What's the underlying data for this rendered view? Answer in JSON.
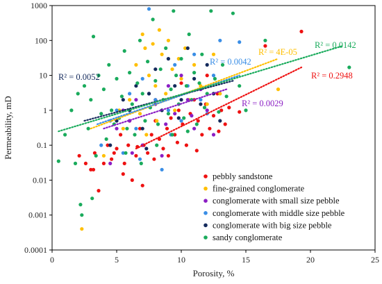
{
  "chart_data": {
    "type": "scatter",
    "title": "",
    "xlabel": "Porosity, %",
    "ylabel": "Permeability, mD",
    "xlim": [
      0,
      25
    ],
    "ylim": [
      0.0001,
      1000
    ],
    "y_scale": "log",
    "x_ticks": [
      "0",
      "5",
      "10",
      "15",
      "20",
      "25"
    ],
    "y_ticks": [
      "0.0001",
      "0.001",
      "0.01",
      "0.1",
      "1",
      "10",
      "100",
      "1000"
    ],
    "grid": false,
    "legend_position": "bottom-right",
    "series": [
      {
        "name": "pebbly sandstone",
        "color": "#ee1111",
        "points": [
          [
            2.1,
            0.05
          ],
          [
            2.6,
            0.03
          ],
          [
            3.0,
            0.02
          ],
          [
            3.3,
            0.06
          ],
          [
            3.6,
            0.005
          ],
          [
            4.0,
            0.03
          ],
          [
            4.3,
            0.1
          ],
          [
            4.6,
            0.04
          ],
          [
            5.0,
            0.08
          ],
          [
            5.3,
            0.2
          ],
          [
            5.6,
            0.03
          ],
          [
            5.9,
            0.1
          ],
          [
            6.2,
            0.01
          ],
          [
            6.5,
            0.05
          ],
          [
            6.8,
            0.3
          ],
          [
            7.1,
            0.1
          ],
          [
            7.4,
            0.06
          ],
          [
            7.7,
            0.2
          ],
          [
            8.0,
            0.5
          ],
          [
            8.3,
            0.15
          ],
          [
            8.6,
            0.08
          ],
          [
            8.9,
            0.3
          ],
          [
            9.2,
            0.6
          ],
          [
            9.5,
            0.2
          ],
          [
            9.8,
            1.0
          ],
          [
            10.1,
            0.4
          ],
          [
            10.4,
            0.1
          ],
          [
            10.7,
            0.8
          ],
          [
            11.0,
            2.0
          ],
          [
            11.3,
            0.5
          ],
          [
            11.6,
            0.2
          ],
          [
            11.9,
            1.5
          ],
          [
            12.2,
            0.3
          ],
          [
            12.5,
            0.7
          ],
          [
            12.8,
            3.0
          ],
          [
            13.1,
            1.0
          ],
          [
            13.4,
            0.4
          ],
          [
            13.7,
            1.2
          ],
          [
            7.0,
            0.007
          ],
          [
            5.5,
            0.015
          ],
          [
            9.0,
            0.05
          ],
          [
            6.0,
            0.5
          ],
          [
            8.0,
            2.0
          ],
          [
            10.0,
            6.0
          ],
          [
            12.0,
            10.0
          ],
          [
            16.5,
            70
          ],
          [
            19.3,
            180
          ],
          [
            14.5,
            0.9
          ],
          [
            4.8,
            0.06
          ],
          [
            3.2,
            0.02
          ],
          [
            6.6,
            0.09
          ],
          [
            7.9,
            0.04
          ],
          [
            9.7,
            0.12
          ],
          [
            11.2,
            0.07
          ],
          [
            12.9,
            0.25
          ]
        ]
      },
      {
        "name": "fine-grained conglomerate",
        "color": "#ffbf00",
        "points": [
          [
            2.3,
            0.0004
          ],
          [
            4.0,
            0.05
          ],
          [
            5.5,
            0.3
          ],
          [
            6.0,
            2.0
          ],
          [
            6.5,
            20
          ],
          [
            7.0,
            150
          ],
          [
            7.2,
            60
          ],
          [
            7.5,
            10
          ],
          [
            7.8,
            80
          ],
          [
            8.0,
            5
          ],
          [
            8.3,
            200
          ],
          [
            8.5,
            40
          ],
          [
            8.8,
            3
          ],
          [
            9.0,
            100
          ],
          [
            9.3,
            15
          ],
          [
            9.5,
            1
          ],
          [
            9.8,
            30
          ],
          [
            10.0,
            8
          ],
          [
            10.3,
            60
          ],
          [
            10.6,
            2
          ],
          [
            11.0,
            20
          ],
          [
            11.5,
            5
          ],
          [
            12.0,
            1.5
          ],
          [
            12.5,
            40
          ],
          [
            13.0,
            3
          ],
          [
            17.5,
            4
          ],
          [
            6.8,
            0.8
          ],
          [
            7.3,
            0.2
          ],
          [
            8.1,
            0.5
          ],
          [
            5.2,
            1.0
          ]
        ]
      },
      {
        "name": "conglomerate with small size pebble",
        "color": "#8b1ec4",
        "points": [
          [
            4.5,
            0.03
          ],
          [
            5.0,
            0.3
          ],
          [
            5.5,
            1.0
          ],
          [
            6.0,
            0.5
          ],
          [
            6.5,
            2.0
          ],
          [
            7.0,
            0.1
          ],
          [
            7.5,
            3.0
          ],
          [
            8.0,
            1.5
          ],
          [
            8.5,
            0.05
          ],
          [
            9.0,
            5.0
          ],
          [
            9.5,
            0.8
          ],
          [
            10.0,
            10
          ],
          [
            10.5,
            2.0
          ],
          [
            11.0,
            0.3
          ],
          [
            11.5,
            4.0
          ],
          [
            12.0,
            1.0
          ],
          [
            12.5,
            0.2
          ],
          [
            6.2,
            0.06
          ],
          [
            8.8,
            0.4
          ],
          [
            10.8,
            0.7
          ]
        ]
      },
      {
        "name": "conglomerate with middle size pebble",
        "color": "#3a8ee6",
        "points": [
          [
            3.8,
            0.1
          ],
          [
            4.5,
            0.5
          ],
          [
            5.0,
            1.0
          ],
          [
            5.5,
            0.06
          ],
          [
            6.0,
            3.0
          ],
          [
            6.5,
            0.3
          ],
          [
            7.0,
            8.0
          ],
          [
            7.5,
            800
          ],
          [
            8.0,
            2.0
          ],
          [
            8.5,
            0.02
          ],
          [
            9.0,
            1.0
          ],
          [
            9.5,
            20
          ],
          [
            10.0,
            0.5
          ],
          [
            10.5,
            5.0
          ],
          [
            11.0,
            40
          ],
          [
            11.5,
            2.0
          ],
          [
            12.0,
            0.8
          ],
          [
            12.5,
            10
          ],
          [
            13.0,
            100
          ],
          [
            14.5,
            90
          ],
          [
            6.8,
            0.04
          ],
          [
            9.2,
            0.2
          ]
        ]
      },
      {
        "name": "conglomerate with big size pebble",
        "color": "#142a5c",
        "points": [
          [
            4.5,
            0.1
          ],
          [
            5.0,
            0.5
          ],
          [
            5.5,
            2.0
          ],
          [
            6.0,
            1.0
          ],
          [
            6.5,
            5.0
          ],
          [
            7.0,
            0.3
          ],
          [
            7.5,
            3.0
          ],
          [
            8.0,
            15
          ],
          [
            8.5,
            1.0
          ],
          [
            9.0,
            30
          ],
          [
            9.5,
            5.0
          ],
          [
            10.0,
            2.0
          ],
          [
            10.5,
            60
          ],
          [
            11.0,
            8.0
          ],
          [
            11.5,
            1.5
          ],
          [
            12.0,
            20
          ],
          [
            12.5,
            3.0
          ],
          [
            13.0,
            0.5
          ],
          [
            7.3,
            0.08
          ],
          [
            9.8,
            0.6
          ]
        ]
      },
      {
        "name": "sandy conglomerate",
        "color": "#1aab5c",
        "points": [
          [
            0.5,
            0.035
          ],
          [
            1.0,
            0.2
          ],
          [
            1.5,
            1.0
          ],
          [
            1.8,
            0.03
          ],
          [
            2.0,
            3.0
          ],
          [
            2.2,
            0.002
          ],
          [
            2.3,
            0.001
          ],
          [
            2.5,
            5.0
          ],
          [
            2.8,
            0.3
          ],
          [
            3.0,
            2.0
          ],
          [
            3.2,
            130
          ],
          [
            3.4,
            0.05
          ],
          [
            3.6,
            10
          ],
          [
            3.8,
            0.8
          ],
          [
            4.0,
            4.0
          ],
          [
            4.2,
            0.15
          ],
          [
            4.4,
            20
          ],
          [
            4.6,
            1.0
          ],
          [
            4.8,
            0.4
          ],
          [
            5.0,
            8.0
          ],
          [
            5.2,
            0.6
          ],
          [
            5.4,
            2.5
          ],
          [
            5.6,
            50
          ],
          [
            5.8,
            0.3
          ],
          [
            6.0,
            12
          ],
          [
            6.2,
            1.5
          ],
          [
            6.4,
            0.2
          ],
          [
            6.6,
            6.0
          ],
          [
            6.8,
            100
          ],
          [
            7.0,
            3.0
          ],
          [
            7.2,
            0.5
          ],
          [
            7.4,
            25
          ],
          [
            7.6,
            1.2
          ],
          [
            7.8,
            400
          ],
          [
            8.0,
            7.0
          ],
          [
            8.2,
            0.4
          ],
          [
            8.4,
            15
          ],
          [
            8.6,
            2.0
          ],
          [
            8.8,
            60
          ],
          [
            9.0,
            0.8
          ],
          [
            9.2,
            4.0
          ],
          [
            9.4,
            700
          ],
          [
            9.6,
            10
          ],
          [
            9.8,
            1.5
          ],
          [
            10.0,
            30
          ],
          [
            10.2,
            0.6
          ],
          [
            10.4,
            5.0
          ],
          [
            10.6,
            150
          ],
          [
            10.8,
            2.0
          ],
          [
            11.0,
            12
          ],
          [
            11.2,
            0.4
          ],
          [
            11.4,
            6.0
          ],
          [
            11.6,
            40
          ],
          [
            11.8,
            1.2
          ],
          [
            12.0,
            3.0
          ],
          [
            12.3,
            700
          ],
          [
            12.6,
            8.0
          ],
          [
            12.9,
            0.9
          ],
          [
            13.2,
            20
          ],
          [
            13.5,
            2.5
          ],
          [
            14.0,
            600
          ],
          [
            14.5,
            5.0
          ],
          [
            15.0,
            1.0
          ],
          [
            16.5,
            100
          ],
          [
            23.0,
            17
          ],
          [
            3.1,
            0.003
          ],
          [
            5.7,
            0.06
          ],
          [
            6.9,
            0.03
          ],
          [
            8.1,
            0.1
          ],
          [
            9.3,
            0.2
          ],
          [
            10.5,
            0.25
          ]
        ]
      }
    ],
    "trendlines": [
      {
        "label": "R² = 0.2948",
        "color": "#ee1111",
        "x": [
          6.5,
          19.3
        ],
        "y": [
          0.08,
          17
        ],
        "label_pos": "right"
      },
      {
        "label": "R² = 4E-05",
        "color": "#ffbf00",
        "x": [
          3.0,
          17.5
        ],
        "y": [
          0.3,
          30
        ],
        "label_pos": "upper-right"
      },
      {
        "label": "R² = 0.0029",
        "color": "#8b1ec4",
        "x": [
          4.0,
          13.5
        ],
        "y": [
          0.3,
          4.0
        ],
        "label_pos": "right"
      },
      {
        "label": "R² = 0.0042",
        "color": "#3a8ee6",
        "x": [
          3.5,
          14.5
        ],
        "y": [
          0.4,
          10
        ],
        "label_pos": "upper-middle"
      },
      {
        "label": "R² = 0.0052",
        "color": "#142a5c",
        "x": [
          2.5,
          14.0
        ],
        "y": [
          0.5,
          7.0
        ],
        "label_pos": "upper-left"
      },
      {
        "label": "R² = 0.0142",
        "color": "#1aab5c",
        "x": [
          0.5,
          22.5
        ],
        "y": [
          0.25,
          70
        ],
        "label_pos": "upper-right"
      }
    ]
  }
}
